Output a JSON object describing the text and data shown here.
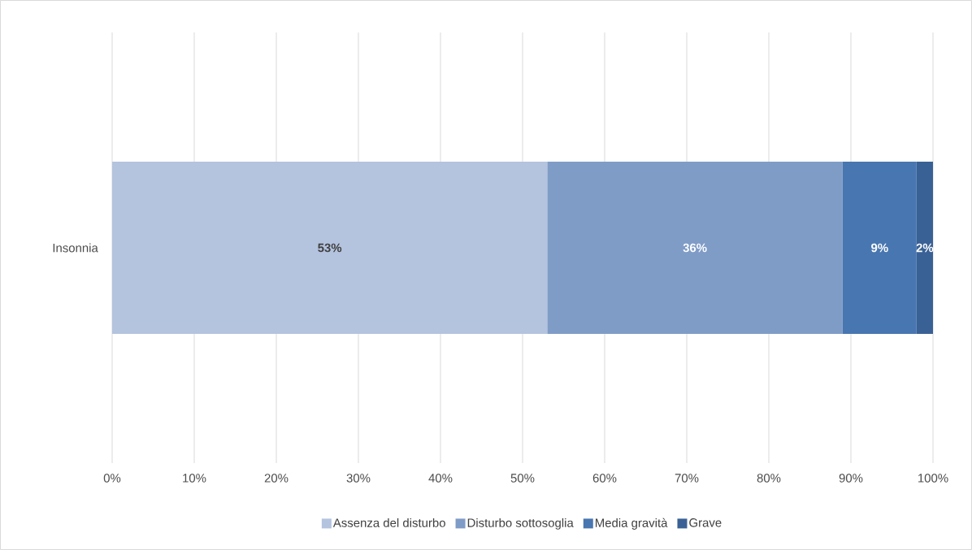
{
  "chart_data": {
    "type": "bar",
    "orientation": "horizontal",
    "stacked": true,
    "categories": [
      "Insonnia"
    ],
    "series": [
      {
        "name": "Assenza del disturbo",
        "color": "#b4c3de",
        "values": [
          53
        ],
        "value_labels": [
          "53%"
        ]
      },
      {
        "name": "Disturbo sottosoglia",
        "color": "#7f9cc7",
        "values": [
          36
        ],
        "value_labels": [
          "36%"
        ]
      },
      {
        "name": "Media gravità",
        "color": "#4876b0",
        "values": [
          9
        ],
        "value_labels": [
          "9%"
        ]
      },
      {
        "name": "Grave",
        "color": "#3a6195",
        "values": [
          2
        ],
        "value_labels": [
          "2%"
        ]
      }
    ],
    "xlim": [
      0,
      100
    ],
    "xticks": [
      {
        "value": 0,
        "label": "0%"
      },
      {
        "value": 10,
        "label": "10%"
      },
      {
        "value": 20,
        "label": "20%"
      },
      {
        "value": 30,
        "label": "30%"
      },
      {
        "value": 40,
        "label": "40%"
      },
      {
        "value": 50,
        "label": "50%"
      },
      {
        "value": 60,
        "label": "60%"
      },
      {
        "value": 70,
        "label": "70%"
      },
      {
        "value": 80,
        "label": "80%"
      },
      {
        "value": 90,
        "label": "90%"
      },
      {
        "value": 100,
        "label": "100%"
      }
    ],
    "grid": "x",
    "legend": "bottom"
  }
}
